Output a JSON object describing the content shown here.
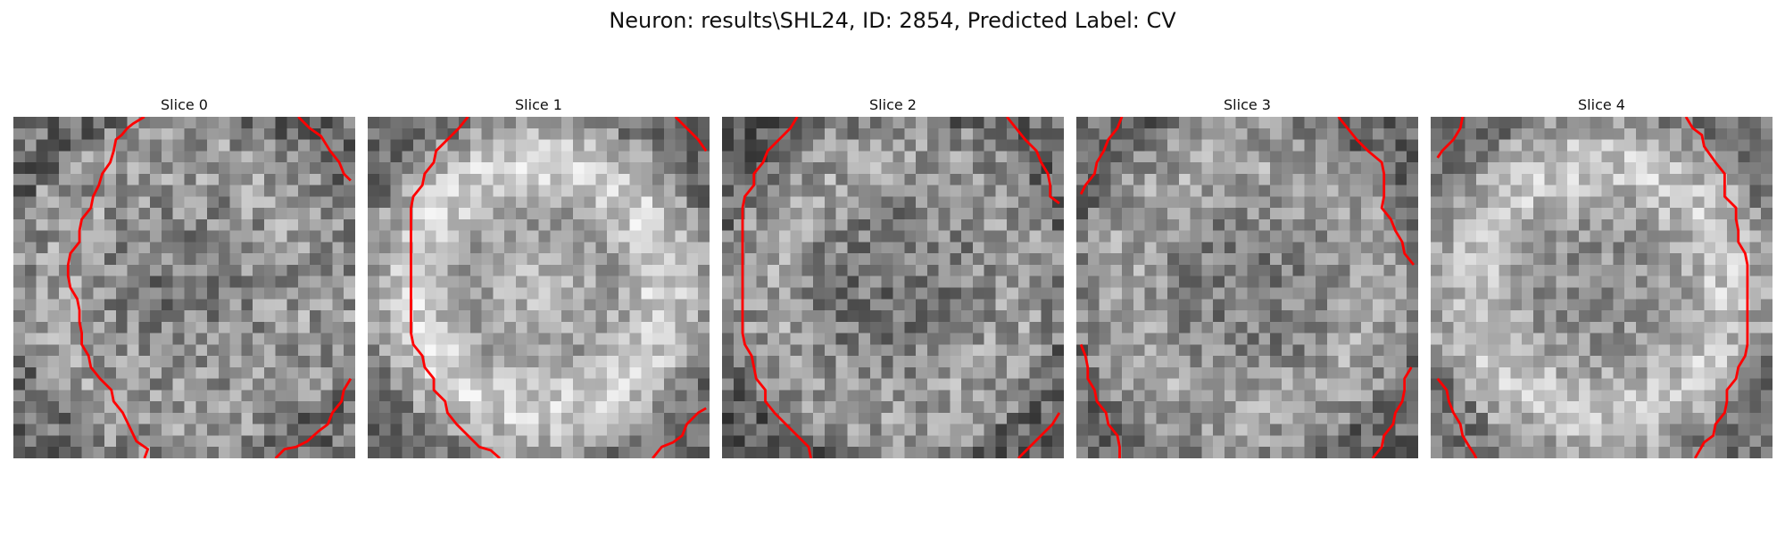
{
  "figure": {
    "title": "Neuron: results\\SHL24, ID: 2854, Predicted Label: CV"
  },
  "panels": [
    {
      "title": "Slice 0"
    },
    {
      "title": "Slice 1"
    },
    {
      "title": "Slice 2"
    },
    {
      "title": "Slice 3"
    },
    {
      "title": "Slice 4"
    }
  ],
  "colors": {
    "contour": "#ff0000",
    "colormap": "grayscale"
  }
}
